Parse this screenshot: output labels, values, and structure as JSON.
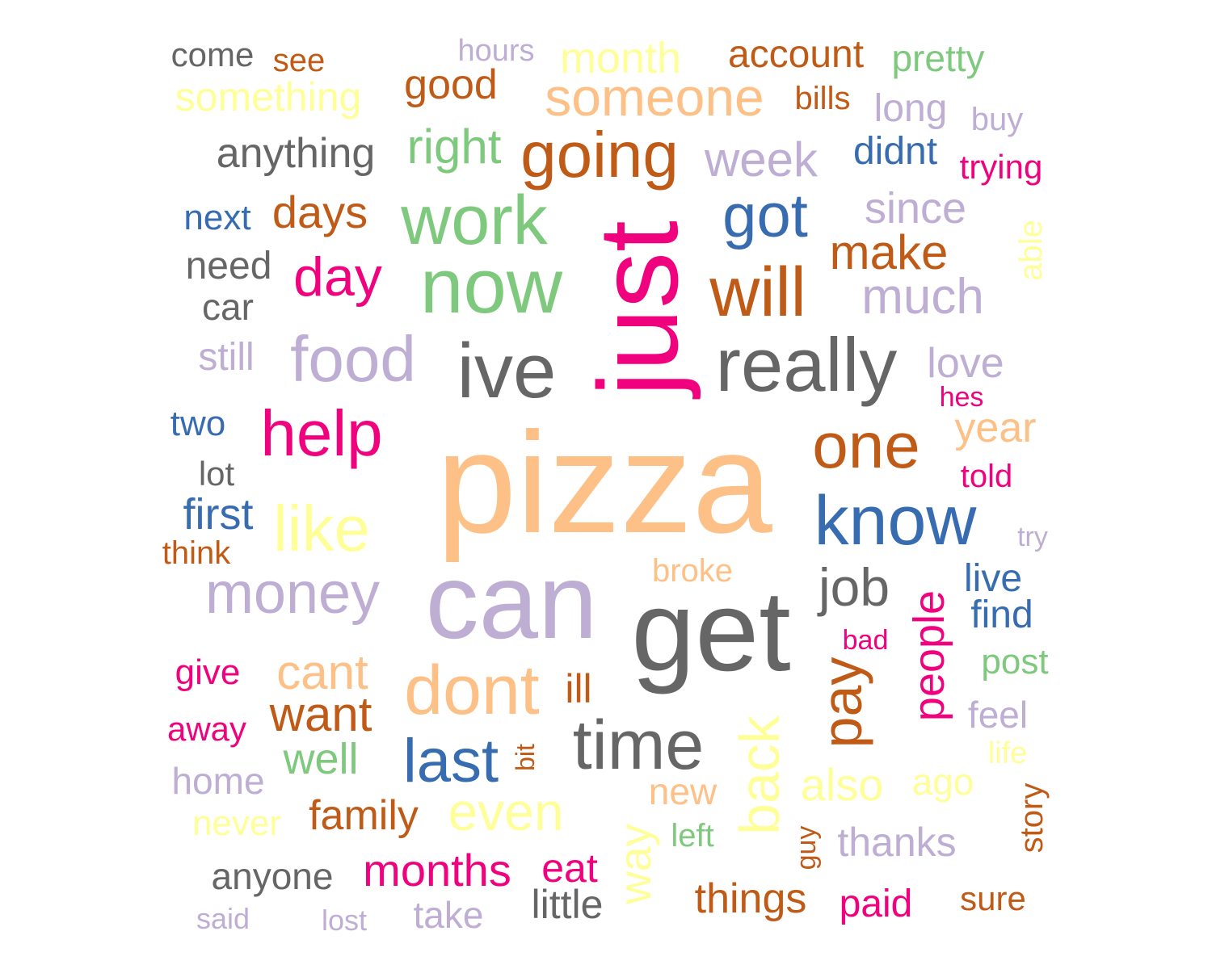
{
  "palette": {
    "green": "#7fc97f",
    "lavender": "#beaed4",
    "peach": "#fdc086",
    "yellow": "#ffff99",
    "blue": "#386cb0",
    "magenta": "#f0027f",
    "brown": "#bf5b17",
    "gray": "#666666"
  },
  "words": [
    {
      "text": "pizza",
      "color": "#fdc086"
    },
    {
      "text": "just",
      "color": "#f0027f"
    },
    {
      "text": "can",
      "color": "#beaed4"
    },
    {
      "text": "get",
      "color": "#666666"
    },
    {
      "text": "ive",
      "color": "#666666"
    },
    {
      "text": "now",
      "color": "#7fc97f"
    },
    {
      "text": "really",
      "color": "#666666"
    },
    {
      "text": "work",
      "color": "#7fc97f"
    },
    {
      "text": "dont",
      "color": "#fdc086"
    },
    {
      "text": "time",
      "color": "#666666"
    },
    {
      "text": "know",
      "color": "#386cb0"
    },
    {
      "text": "going",
      "color": "#bf5b17"
    },
    {
      "text": "will",
      "color": "#bf5b17"
    },
    {
      "text": "help",
      "color": "#f0027f"
    },
    {
      "text": "one",
      "color": "#bf5b17"
    },
    {
      "text": "food",
      "color": "#beaed4"
    },
    {
      "text": "money",
      "color": "#beaed4"
    },
    {
      "text": "like",
      "color": "#ffff99"
    },
    {
      "text": "got",
      "color": "#386cb0"
    },
    {
      "text": "last",
      "color": "#386cb0"
    },
    {
      "text": "someone",
      "color": "#fdc086"
    },
    {
      "text": "back",
      "color": "#ffff99"
    },
    {
      "text": "pay",
      "color": "#bf5b17"
    },
    {
      "text": "job",
      "color": "#666666"
    },
    {
      "text": "even",
      "color": "#ffff99"
    },
    {
      "text": "day",
      "color": "#f0027f"
    },
    {
      "text": "much",
      "color": "#beaed4"
    },
    {
      "text": "week",
      "color": "#beaed4"
    },
    {
      "text": "right",
      "color": "#7fc97f"
    },
    {
      "text": "make",
      "color": "#bf5b17"
    },
    {
      "text": "cant",
      "color": "#fdc086"
    },
    {
      "text": "want",
      "color": "#bf5b17"
    },
    {
      "text": "months",
      "color": "#f0027f"
    },
    {
      "text": "anything",
      "color": "#666666"
    },
    {
      "text": "something",
      "color": "#ffff99"
    },
    {
      "text": "people",
      "color": "#f0027f"
    },
    {
      "text": "also",
      "color": "#ffff99"
    },
    {
      "text": "month",
      "color": "#ffff99"
    },
    {
      "text": "account",
      "color": "#bf5b17"
    },
    {
      "text": "days",
      "color": "#bf5b17"
    },
    {
      "text": "good",
      "color": "#bf5b17"
    },
    {
      "text": "since",
      "color": "#beaed4"
    },
    {
      "text": "thanks",
      "color": "#beaed4"
    },
    {
      "text": "things",
      "color": "#bf5b17"
    },
    {
      "text": "family",
      "color": "#bf5b17"
    },
    {
      "text": "didnt",
      "color": "#386cb0"
    },
    {
      "text": "pretty",
      "color": "#7fc97f"
    },
    {
      "text": "year",
      "color": "#fdc086"
    },
    {
      "text": "way",
      "color": "#ffff99"
    },
    {
      "text": "need",
      "color": "#666666"
    },
    {
      "text": "first",
      "color": "#386cb0"
    },
    {
      "text": "find",
      "color": "#386cb0"
    },
    {
      "text": "live",
      "color": "#386cb0"
    },
    {
      "text": "love",
      "color": "#beaed4"
    },
    {
      "text": "long",
      "color": "#beaed4"
    },
    {
      "text": "well",
      "color": "#7fc97f"
    },
    {
      "text": "little",
      "color": "#666666"
    },
    {
      "text": "anyone",
      "color": "#666666"
    },
    {
      "text": "home",
      "color": "#beaed4"
    },
    {
      "text": "eat",
      "color": "#f0027f"
    },
    {
      "text": "take",
      "color": "#beaed4"
    },
    {
      "text": "paid",
      "color": "#f0027f"
    },
    {
      "text": "new",
      "color": "#fdc086"
    },
    {
      "text": "ago",
      "color": "#ffff99"
    },
    {
      "text": "feel",
      "color": "#beaed4"
    },
    {
      "text": "post",
      "color": "#7fc97f"
    },
    {
      "text": "give",
      "color": "#f0027f"
    },
    {
      "text": "sure",
      "color": "#bf5b17"
    },
    {
      "text": "still",
      "color": "#beaed4"
    },
    {
      "text": "next",
      "color": "#386cb0"
    },
    {
      "text": "two",
      "color": "#386cb0"
    },
    {
      "text": "never",
      "color": "#ffff99"
    },
    {
      "text": "trying",
      "color": "#f0027f"
    },
    {
      "text": "car",
      "color": "#666666"
    },
    {
      "text": "come",
      "color": "#666666"
    },
    {
      "text": "bills",
      "color": "#bf5b17"
    },
    {
      "text": "told",
      "color": "#f0027f"
    },
    {
      "text": "away",
      "color": "#f0027f"
    },
    {
      "text": "broke",
      "color": "#fdc086"
    },
    {
      "text": "able",
      "color": "#ffff99"
    },
    {
      "text": "hours",
      "color": "#beaed4"
    },
    {
      "text": "buy",
      "color": "#beaed4"
    },
    {
      "text": "see",
      "color": "#bf5b17"
    },
    {
      "text": "lot",
      "color": "#666666"
    },
    {
      "text": "think",
      "color": "#bf5b17"
    },
    {
      "text": "ill",
      "color": "#bf5b17"
    },
    {
      "text": "left",
      "color": "#7fc97f"
    },
    {
      "text": "hes",
      "color": "#f0027f"
    },
    {
      "text": "bad",
      "color": "#f0027f"
    },
    {
      "text": "life",
      "color": "#ffff99"
    },
    {
      "text": "story",
      "color": "#bf5b17"
    },
    {
      "text": "try",
      "color": "#beaed4"
    },
    {
      "text": "said",
      "color": "#beaed4"
    },
    {
      "text": "lost",
      "color": "#beaed4"
    },
    {
      "text": "bit",
      "color": "#bf5b17"
    },
    {
      "text": "guy",
      "color": "#bf5b17"
    }
  ]
}
